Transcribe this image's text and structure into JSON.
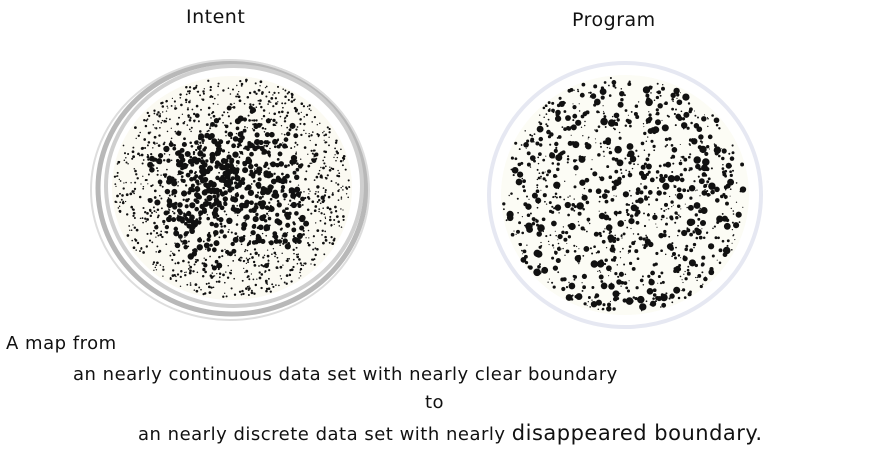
{
  "intent": {
    "title": "Intent"
  },
  "program": {
    "title": "Program"
  },
  "caption": {
    "line1": "A map from",
    "line2": "an nearly continuous data set with nearly clear boundary",
    "line3": "to",
    "line4_start": "an nearly discrete data set with nearly ",
    "line4_emph": "disappeared boundary.",
    "line4_end": ""
  },
  "colors": {
    "dot": "#111111",
    "intent_ring": "#b8b8b8",
    "program_ring": "#e6e8f2",
    "fill_tint": "#f6f5e6"
  }
}
